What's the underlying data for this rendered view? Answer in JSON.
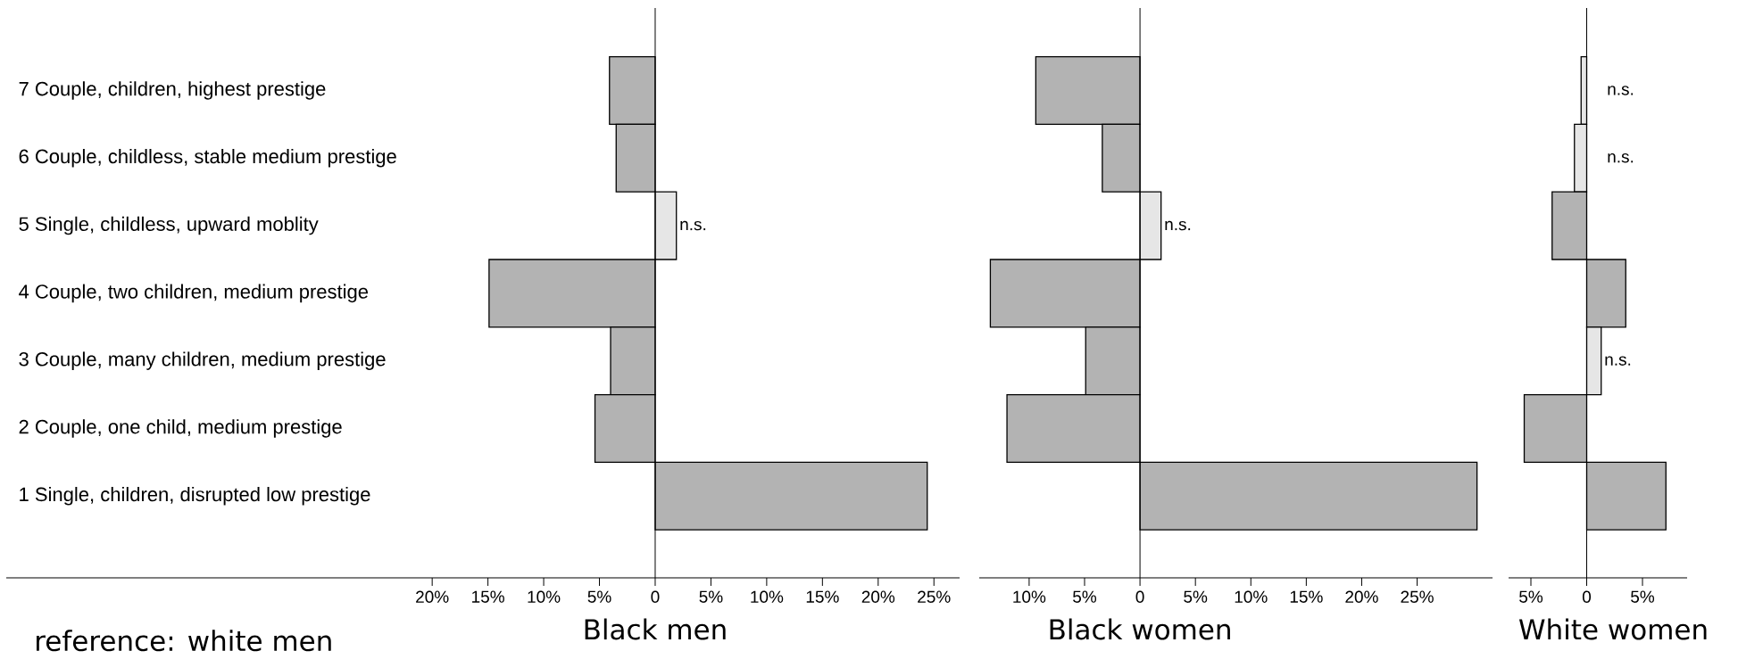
{
  "chart_data": [
    {
      "type": "bar",
      "orientation": "horizontal",
      "xlabel": "Black men",
      "categories": [
        "7 Couple, children, highest prestige",
        "6 Couple, childless, stable medium prestige",
        "5 Single, childless, upward moblity",
        "4 Couple, two children, medium prestige",
        "3 Couple, many children, medium prestige",
        "2 Couple, one child, medium prestige",
        "1 Single, children, disrupted low prestige"
      ],
      "values": [
        -4.1,
        -3.5,
        1.9,
        -14.9,
        -4.0,
        -5.4,
        24.4
      ],
      "colors": [
        "#b3b3b3",
        "#b3b3b3",
        "#e6e6e6",
        "#b3b3b3",
        "#b3b3b3",
        "#b3b3b3",
        "#b3b3b3"
      ],
      "xlim": [
        -58.2,
        27.3
      ],
      "xticks": [
        {
          "value": -20,
          "label": "20%"
        },
        {
          "value": -15,
          "label": "15%"
        },
        {
          "value": -10,
          "label": "10%"
        },
        {
          "value": -5,
          "label": "5%"
        },
        0,
        {
          "value": 5,
          "label": "5%"
        },
        {
          "value": 10,
          "label": "10%"
        },
        {
          "value": 15,
          "label": "15%"
        },
        {
          "value": 20,
          "label": "20%"
        },
        {
          "value": 25,
          "label": "25%"
        }
      ],
      "annotations": [
        "n.s.",
        "reference: white men"
      ]
    },
    {
      "type": "bar",
      "orientation": "horizontal",
      "xlabel": "Black women",
      "tick_labels": "x",
      "categories": [
        null,
        null,
        null,
        null,
        null,
        null,
        null
      ],
      "values": [
        -9.4,
        -3.4,
        1.9,
        -13.5,
        -4.9,
        -12.0,
        30.4
      ],
      "colors": [
        "#b3b3b3",
        "#b3b3b3",
        "#e6e6e6",
        "#b3b3b3",
        "#b3b3b3",
        "#b3b3b3",
        "#b3b3b3"
      ],
      "xlim": [
        -14.5,
        31.8
      ],
      "xticks": [
        {
          "value": -10,
          "label": "10%"
        },
        {
          "value": -5,
          "label": "5%"
        },
        0,
        {
          "value": 5,
          "label": "5%"
        },
        {
          "value": 10,
          "label": "10%"
        },
        {
          "value": 15,
          "label": "15%"
        },
        {
          "value": 20,
          "label": "20%"
        },
        {
          "value": 25,
          "label": "25%"
        }
      ],
      "annotations": [
        "n.s."
      ]
    },
    {
      "type": "bar",
      "orientation": "horizontal",
      "xlabel": "White women",
      "tick_labels": "x",
      "categories": [
        null,
        null,
        null,
        null,
        null,
        null,
        null
      ],
      "values": [
        -0.5,
        -1.1,
        -3.1,
        3.5,
        1.3,
        -5.6,
        7.1
      ],
      "colors": [
        "#e6e6e6",
        "#e6e6e6",
        "#b3b3b3",
        "#b3b3b3",
        "#e6e6e6",
        "#b3b3b3",
        "#b3b3b3"
      ],
      "xlim": [
        -7.0,
        9.0
      ],
      "xticks": [
        {
          "value": -5,
          "label": "5%"
        },
        0,
        {
          "value": 5,
          "label": "5%"
        }
      ],
      "annotations": [
        "n.s.",
        "n.s.",
        "n.s."
      ]
    }
  ]
}
